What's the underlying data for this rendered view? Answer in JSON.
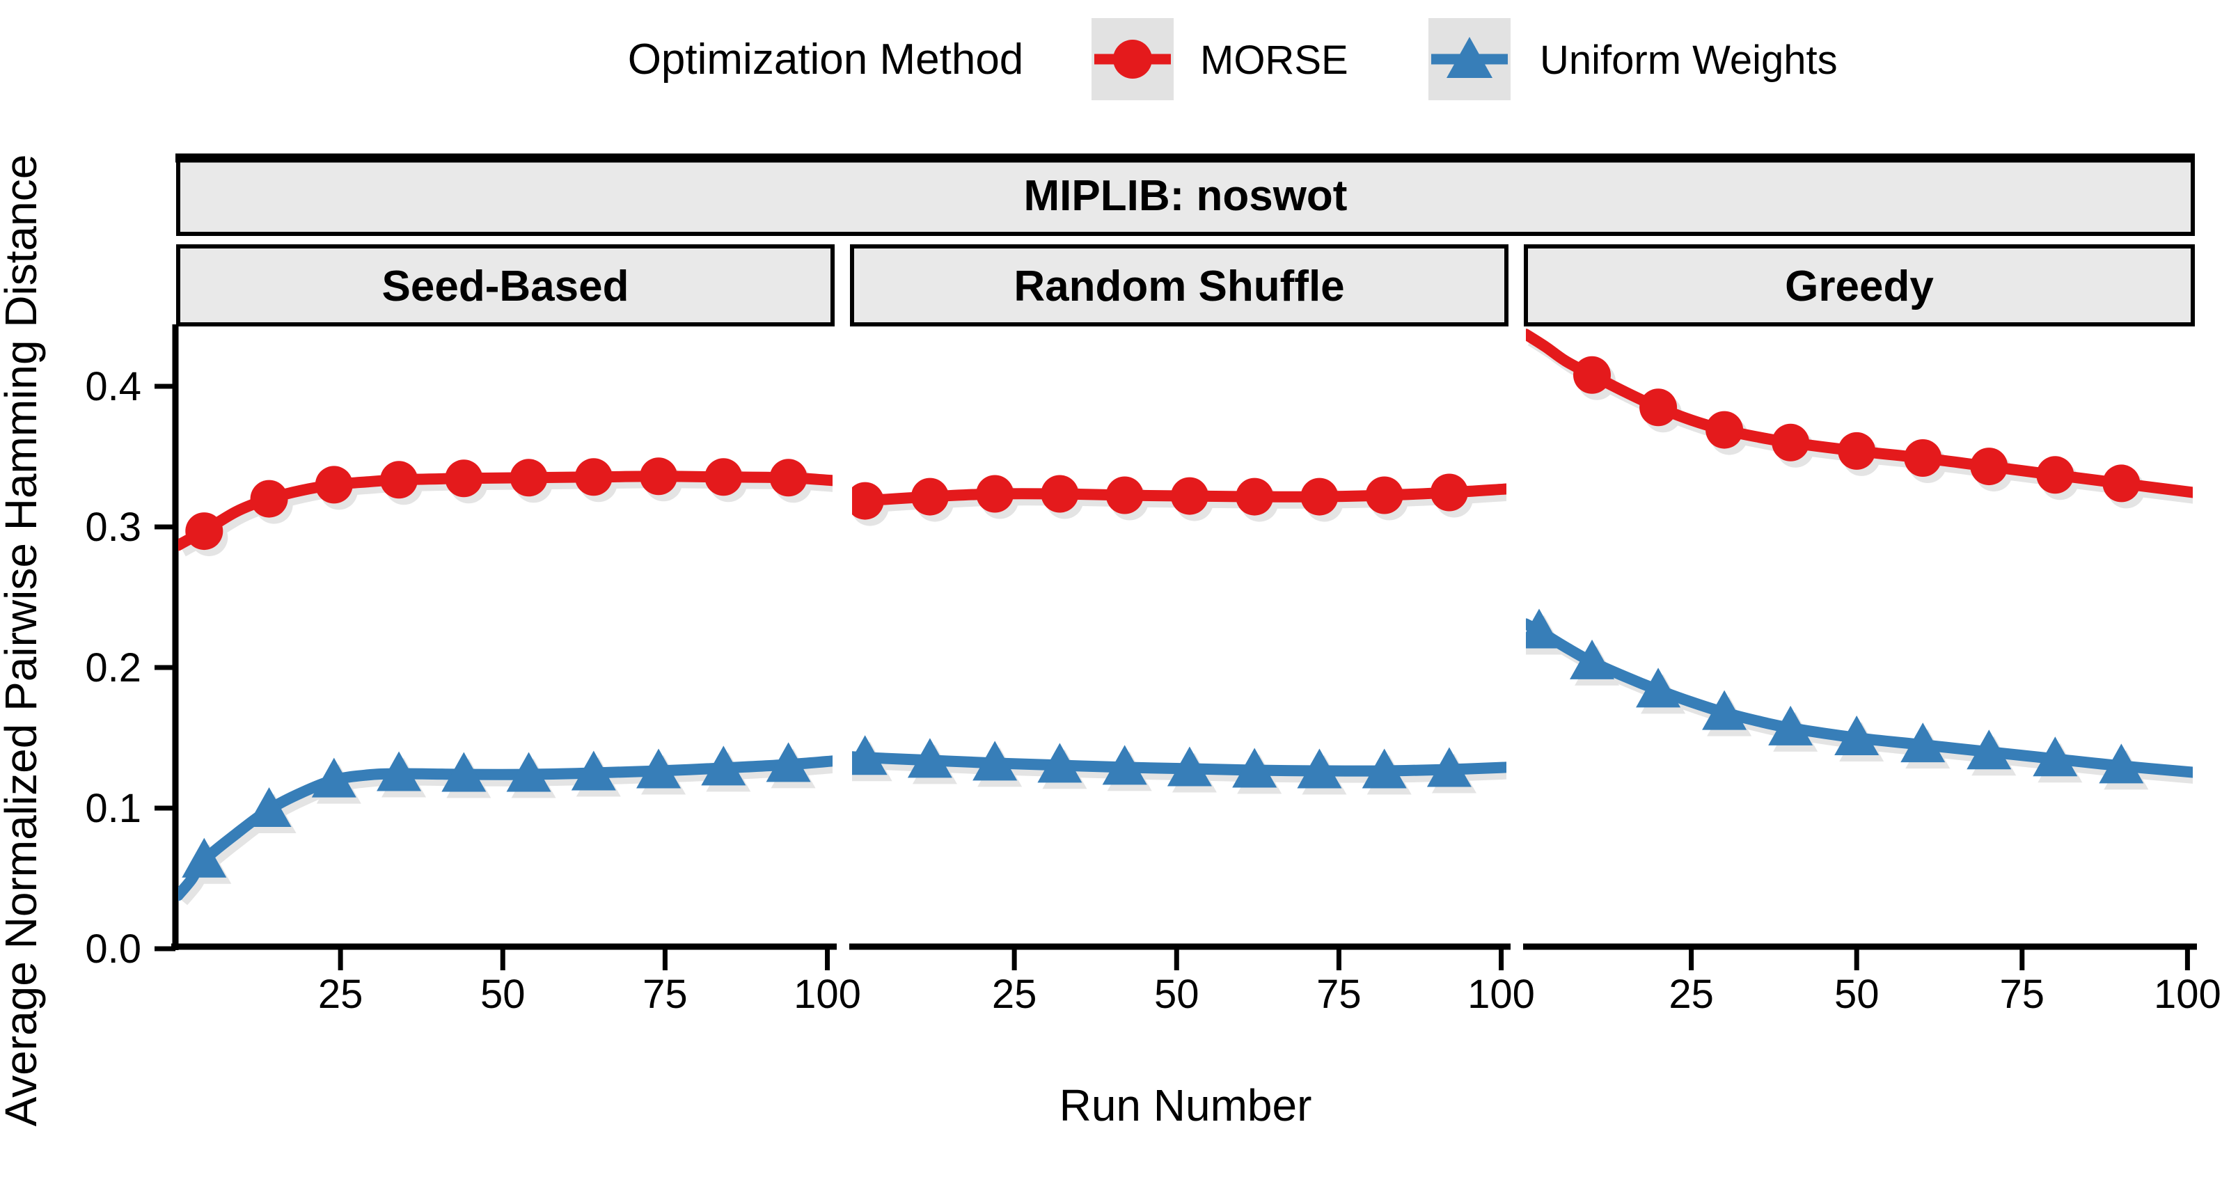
{
  "chart_data": {
    "type": "line",
    "strip_title": "MIPLIB: noswot",
    "xlabel": "Run Number",
    "ylabel": "Average Normalized Pairwise Hamming Distance",
    "x_ticks": [
      25,
      50,
      75,
      100
    ],
    "y_ticks": [
      "0.0",
      "0.1",
      "0.2",
      "0.3",
      "0.4"
    ],
    "x_domain": [
      0,
      100.8
    ],
    "y_domain": [
      0,
      0.445
    ],
    "grid": "off",
    "legend": {
      "title": "Optimization Method",
      "position": "top-center",
      "entries": [
        {
          "label": "MORSE",
          "color": "#E41A1C",
          "marker": "circle"
        },
        {
          "label": "Uniform Weights",
          "color": "#377EB8",
          "marker": "triangle"
        }
      ]
    },
    "colors": {
      "morse": "#E41A1C",
      "uniform": "#377EB8",
      "strip_fill": "#E9E9E9",
      "legend_key_fill": "#E2E2E2",
      "axis": "#000000",
      "shadow": "#b9b9b9"
    },
    "facets": [
      {
        "label": "Seed-Based",
        "series": [
          {
            "name": "MORSE",
            "color": "#E41A1C",
            "marker": "circle",
            "line": [
              [
                0,
                0.287
              ],
              [
                2,
                0.292
              ],
              [
                4,
                0.297
              ],
              [
                9,
                0.311
              ],
              [
                14,
                0.32
              ],
              [
                19,
                0.326
              ],
              [
                24,
                0.33
              ],
              [
                29,
                0.332
              ],
              [
                34,
                0.3335
              ],
              [
                44,
                0.3345
              ],
              [
                54,
                0.335
              ],
              [
                64,
                0.3355
              ],
              [
                74,
                0.336
              ],
              [
                84,
                0.3355
              ],
              [
                94,
                0.335
              ],
              [
                100.8,
                0.333
              ]
            ],
            "markers": [
              [
                4,
                0.297
              ],
              [
                14,
                0.32
              ],
              [
                24,
                0.33
              ],
              [
                34,
                0.3335
              ],
              [
                44,
                0.3345
              ],
              [
                54,
                0.335
              ],
              [
                64,
                0.3355
              ],
              [
                74,
                0.336
              ],
              [
                84,
                0.3355
              ],
              [
                94,
                0.335
              ]
            ]
          },
          {
            "name": "Uniform Weights",
            "color": "#377EB8",
            "marker": "triangle",
            "line": [
              [
                0,
                0.038
              ],
              [
                2,
                0.049
              ],
              [
                4,
                0.063
              ],
              [
                9,
                0.082
              ],
              [
                14,
                0.099
              ],
              [
                19,
                0.111
              ],
              [
                24,
                0.12
              ],
              [
                29,
                0.1235
              ],
              [
                34,
                0.1245
              ],
              [
                44,
                0.124
              ],
              [
                54,
                0.124
              ],
              [
                64,
                0.125
              ],
              [
                74,
                0.1265
              ],
              [
                84,
                0.1285
              ],
              [
                94,
                0.131
              ],
              [
                100.8,
                0.1335
              ]
            ],
            "markers": [
              [
                4,
                0.063
              ],
              [
                14,
                0.099
              ],
              [
                24,
                0.12
              ],
              [
                34,
                0.1245
              ],
              [
                44,
                0.124
              ],
              [
                54,
                0.124
              ],
              [
                64,
                0.125
              ],
              [
                74,
                0.1265
              ],
              [
                84,
                0.1285
              ],
              [
                94,
                0.131
              ]
            ]
          }
        ]
      },
      {
        "label": "Random Shuffle",
        "series": [
          {
            "name": "MORSE",
            "color": "#E41A1C",
            "marker": "circle",
            "line": [
              [
                0,
                0.317
              ],
              [
                2,
                0.3185
              ],
              [
                12,
                0.3215
              ],
              [
                22,
                0.3235
              ],
              [
                32,
                0.3235
              ],
              [
                42,
                0.3225
              ],
              [
                52,
                0.322
              ],
              [
                62,
                0.3215
              ],
              [
                72,
                0.3215
              ],
              [
                82,
                0.3225
              ],
              [
                92,
                0.3245
              ],
              [
                100.8,
                0.327
              ]
            ],
            "markers": [
              [
                2,
                0.3185
              ],
              [
                12,
                0.3215
              ],
              [
                22,
                0.3235
              ],
              [
                32,
                0.3235
              ],
              [
                42,
                0.3225
              ],
              [
                52,
                0.322
              ],
              [
                62,
                0.3215
              ],
              [
                72,
                0.3215
              ],
              [
                82,
                0.3225
              ],
              [
                92,
                0.3245
              ]
            ]
          },
          {
            "name": "Uniform Weights",
            "color": "#377EB8",
            "marker": "triangle",
            "line": [
              [
                0,
                0.1365
              ],
              [
                2,
                0.136
              ],
              [
                12,
                0.134
              ],
              [
                22,
                0.132
              ],
              [
                32,
                0.1305
              ],
              [
                42,
                0.129
              ],
              [
                52,
                0.128
              ],
              [
                62,
                0.127
              ],
              [
                72,
                0.1265
              ],
              [
                82,
                0.1265
              ],
              [
                92,
                0.1275
              ],
              [
                100.8,
                0.129
              ]
            ],
            "markers": [
              [
                2,
                0.136
              ],
              [
                12,
                0.134
              ],
              [
                22,
                0.132
              ],
              [
                32,
                0.1305
              ],
              [
                42,
                0.129
              ],
              [
                52,
                0.128
              ],
              [
                62,
                0.127
              ],
              [
                72,
                0.1265
              ],
              [
                82,
                0.1265
              ],
              [
                92,
                0.1275
              ]
            ]
          }
        ]
      },
      {
        "label": "Greedy",
        "series": [
          {
            "name": "MORSE",
            "color": "#E41A1C",
            "marker": "circle",
            "line": [
              [
                0,
                0.437
              ],
              [
                3,
                0.428
              ],
              [
                6,
                0.418
              ],
              [
                10,
                0.408
              ],
              [
                15,
                0.396
              ],
              [
                20,
                0.385
              ],
              [
                25,
                0.376
              ],
              [
                30,
                0.369
              ],
              [
                35,
                0.364
              ],
              [
                40,
                0.36
              ],
              [
                50,
                0.354
              ],
              [
                60,
                0.349
              ],
              [
                70,
                0.343
              ],
              [
                80,
                0.337
              ],
              [
                90,
                0.331
              ],
              [
                100.8,
                0.3245
              ]
            ],
            "markers": [
              [
                10,
                0.408
              ],
              [
                20,
                0.385
              ],
              [
                30,
                0.369
              ],
              [
                40,
                0.36
              ],
              [
                50,
                0.354
              ],
              [
                60,
                0.349
              ],
              [
                70,
                0.343
              ],
              [
                80,
                0.337
              ],
              [
                90,
                0.331
              ]
            ]
          },
          {
            "name": "Uniform Weights",
            "color": "#377EB8",
            "marker": "triangle",
            "line": [
              [
                0,
                0.231
              ],
              [
                2,
                0.226
              ],
              [
                6,
                0.2145
              ],
              [
                10,
                0.204
              ],
              [
                15,
                0.1935
              ],
              [
                20,
                0.184
              ],
              [
                25,
                0.1755
              ],
              [
                30,
                0.168
              ],
              [
                35,
                0.162
              ],
              [
                40,
                0.157
              ],
              [
                50,
                0.15
              ],
              [
                60,
                0.145
              ],
              [
                70,
                0.14
              ],
              [
                80,
                0.135
              ],
              [
                90,
                0.13
              ],
              [
                100.8,
                0.1255
              ]
            ],
            "markers": [
              [
                2,
                0.226
              ],
              [
                10,
                0.204
              ],
              [
                20,
                0.184
              ],
              [
                30,
                0.168
              ],
              [
                40,
                0.157
              ],
              [
                50,
                0.15
              ],
              [
                60,
                0.145
              ],
              [
                70,
                0.14
              ],
              [
                80,
                0.135
              ],
              [
                90,
                0.13
              ]
            ]
          }
        ]
      }
    ]
  }
}
